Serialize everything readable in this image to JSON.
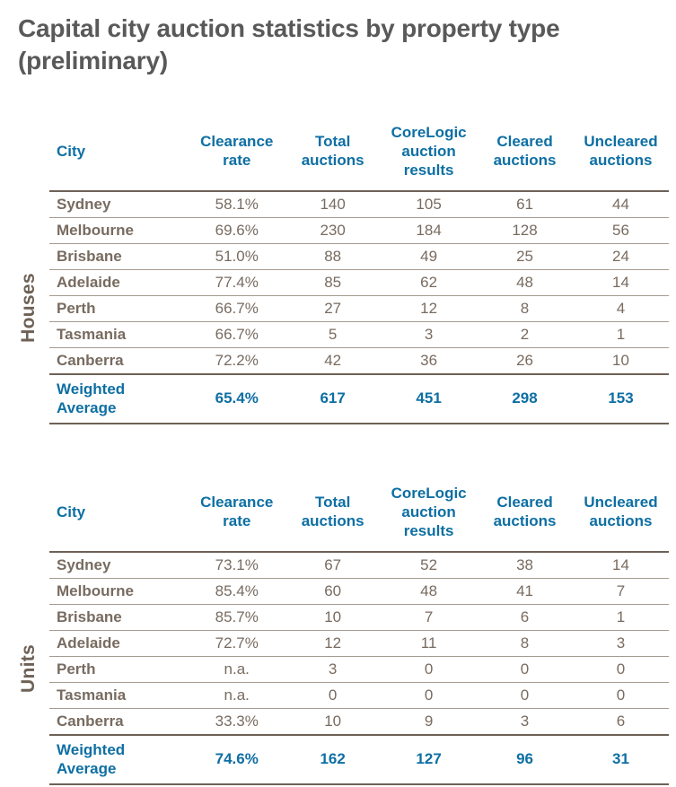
{
  "page_title": {
    "line1": "Capital city auction statistics by property type",
    "line2": "(preliminary)"
  },
  "columns": [
    "City",
    "Clearance rate",
    "Total auctions",
    "CoreLogic auction results",
    "Cleared auctions",
    "Uncleared auctions"
  ],
  "tables": [
    {
      "group_label": "Houses",
      "rows": [
        [
          "Sydney",
          "58.1%",
          "140",
          "105",
          "61",
          "44"
        ],
        [
          "Melbourne",
          "69.6%",
          "230",
          "184",
          "128",
          "56"
        ],
        [
          "Brisbane",
          "51.0%",
          "88",
          "49",
          "25",
          "24"
        ],
        [
          "Adelaide",
          "77.4%",
          "85",
          "62",
          "48",
          "14"
        ],
        [
          "Perth",
          "66.7%",
          "27",
          "12",
          "8",
          "4"
        ],
        [
          "Tasmania",
          "66.7%",
          "5",
          "3",
          "2",
          "1"
        ],
        [
          "Canberra",
          "72.2%",
          "42",
          "36",
          "26",
          "10"
        ]
      ],
      "weighted_average": [
        "Weighted Average",
        "65.4%",
        "617",
        "451",
        "298",
        "153"
      ]
    },
    {
      "group_label": "Units",
      "rows": [
        [
          "Sydney",
          "73.1%",
          "67",
          "52",
          "38",
          "14"
        ],
        [
          "Melbourne",
          "85.4%",
          "60",
          "48",
          "41",
          "7"
        ],
        [
          "Brisbane",
          "85.7%",
          "10",
          "7",
          "6",
          "1"
        ],
        [
          "Adelaide",
          "72.7%",
          "12",
          "11",
          "8",
          "3"
        ],
        [
          "Perth",
          "n.a.",
          "3",
          "0",
          "0",
          "0"
        ],
        [
          "Tasmania",
          "n.a.",
          "0",
          "0",
          "0",
          "0"
        ],
        [
          "Canberra",
          "33.3%",
          "10",
          "9",
          "3",
          "6"
        ]
      ],
      "weighted_average": [
        "Weighted Average",
        "74.6%",
        "162",
        "127",
        "96",
        "31"
      ]
    }
  ],
  "colors": {
    "title_gray": "#595959",
    "header_blue": "#0e6fa3",
    "body_taupe": "#786b60",
    "rule_dark": "#6e6156",
    "rule_light": "#a59b90"
  }
}
